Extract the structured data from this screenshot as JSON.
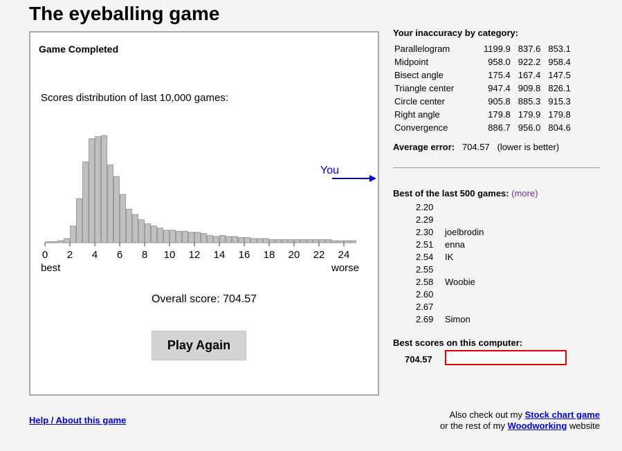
{
  "page": {
    "title": "The eyeballing game"
  },
  "game": {
    "status": "Game Completed",
    "distribution_title": "Scores distribution of last 10,000 games:",
    "you_label": "You",
    "best_label": "best",
    "worse_label": "worse",
    "overall_label": "Overall score:",
    "overall_value": "704.57",
    "play_again_label": "Play Again"
  },
  "chart_data": {
    "type": "bar",
    "x_ticks": [
      0,
      2,
      4,
      6,
      8,
      10,
      12,
      14,
      16,
      18,
      20,
      22,
      24
    ],
    "bin_width": 0.5,
    "xlim": [
      0,
      25
    ],
    "values": [
      1,
      1,
      2,
      4,
      16,
      42,
      77,
      99,
      101,
      102,
      74,
      63,
      46,
      32,
      27,
      22,
      18,
      16,
      14,
      12,
      12,
      11,
      11,
      10,
      10,
      9,
      7,
      6,
      7,
      6,
      6,
      5,
      5,
      4,
      4,
      4,
      3,
      3,
      3,
      3,
      3,
      3,
      3,
      3,
      3,
      3,
      2,
      2,
      2,
      2
    ],
    "you_marker": "off-scale, pointing right",
    "colors": {
      "bar_fill": "#c0c0c0",
      "bar_stroke": "#8a8a8a",
      "you": "#0000cc"
    }
  },
  "inaccuracy": {
    "title": "Your inaccuracy by category:",
    "rows": [
      {
        "name": "Parallelogram",
        "v1": "1199.9",
        "v2": "837.6",
        "v3": "853.1"
      },
      {
        "name": "Midpoint",
        "v1": "958.0",
        "v2": "922.2",
        "v3": "958.4"
      },
      {
        "name": "Bisect angle",
        "v1": "175.4",
        "v2": "167.4",
        "v3": "147.5"
      },
      {
        "name": "Triangle center",
        "v1": "947.4",
        "v2": "909.8",
        "v3": "826.1"
      },
      {
        "name": "Circle center",
        "v1": "905.8",
        "v2": "885.3",
        "v3": "915.3"
      },
      {
        "name": "Right angle",
        "v1": "179.8",
        "v2": "179.9",
        "v3": "179.8"
      },
      {
        "name": "Convergence",
        "v1": "886.7",
        "v2": "956.0",
        "v3": "804.6"
      }
    ],
    "average_label": "Average error:",
    "average_value": "704.57",
    "average_note": "(lower is better)"
  },
  "best500": {
    "title": "Best of the last 500 games:",
    "more_label": "(more)",
    "rows": [
      {
        "score": "2.20",
        "name": ""
      },
      {
        "score": "2.29",
        "name": ""
      },
      {
        "score": "2.30",
        "name": "joelbrodin"
      },
      {
        "score": "2.51",
        "name": "enna"
      },
      {
        "score": "2.54",
        "name": "IK"
      },
      {
        "score": "2.55",
        "name": ""
      },
      {
        "score": "2.58",
        "name": "Woobie"
      },
      {
        "score": "2.60",
        "name": ""
      },
      {
        "score": "2.67",
        "name": ""
      },
      {
        "score": "2.69",
        "name": "Simon"
      }
    ]
  },
  "best_computer": {
    "title": "Best scores on this computer:",
    "score": "704.57",
    "name_value": ""
  },
  "footer": {
    "help_label": "Help / About this game",
    "line1_prefix": "Also check out my",
    "stock_link": "Stock chart game",
    "line2_prefix": "or the rest of my",
    "wood_link": "Woodworking",
    "line2_suffix": "website"
  }
}
